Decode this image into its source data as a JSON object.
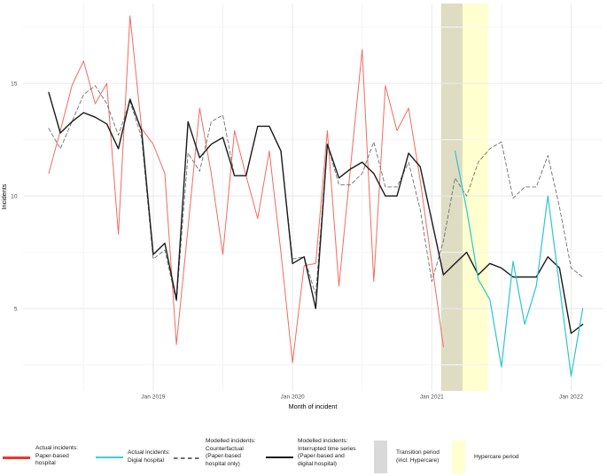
{
  "chart_data": {
    "type": "line",
    "title": "",
    "x_axis": {
      "label": "Month of incident",
      "tick_labels": [
        "Jan 2019",
        "Jan 2020",
        "Jan 2021",
        "Jan 2022"
      ],
      "tick_indices": [
        9,
        21,
        33,
        45
      ],
      "minor_tick_indices": [
        3,
        15,
        27,
        39
      ],
      "n_points": 47,
      "start_month": "Apr 2018",
      "end_month": "Feb 2022"
    },
    "y_axis": {
      "label": "Incidents",
      "tick_values": [
        5,
        10,
        15
      ],
      "minor_tick_values": [
        2.5,
        7.5,
        12.5,
        17.5
      ],
      "range": [
        1.3,
        18.6
      ]
    },
    "grid": {
      "major_color": "#e9e9e9",
      "minor_color": "#f4f4f4",
      "grid_on": true
    },
    "bands": [
      {
        "name": "Transition period (incl. Hypercare)",
        "color": "#deddc4",
        "from_index": 33.8,
        "to_index": 35.65
      },
      {
        "name": "Hypercare period",
        "color": "#ffffd0",
        "from_index": 35.65,
        "to_index": 37.86
      }
    ],
    "series": [
      {
        "name": "Actual incidents: Paper-based hospital",
        "color": "#f26b60",
        "style": "solid",
        "width": 1.0,
        "start_index": 0,
        "first_month": "Apr 2018",
        "values": [
          11.0,
          12.9,
          14.9,
          16.0,
          14.1,
          15.0,
          8.3,
          18.0,
          13.0,
          12.3,
          11.0,
          3.4,
          8.6,
          13.9,
          11.0,
          7.4,
          12.9,
          10.9,
          9.0,
          12.0,
          7.5,
          2.6,
          6.9,
          7.0,
          12.9,
          6.0,
          11.3,
          16.5,
          6.2,
          14.9,
          12.9,
          13.9,
          10.7,
          7.0,
          3.3
        ]
      },
      {
        "name": "Modelled incidents: Counterfactual (Paper-based hospital only)",
        "color": "#6f6f6f",
        "style": "dashed",
        "width": 0.9,
        "start_index": 0,
        "first_month": "Apr 2018",
        "values": [
          13.0,
          12.1,
          13.3,
          14.5,
          14.9,
          14.1,
          12.7,
          14.2,
          12.6,
          7.2,
          7.6,
          5.3,
          11.9,
          11.1,
          13.3,
          13.6,
          10.9,
          10.9,
          13.1,
          13.1,
          12.0,
          7.2,
          7.3,
          5.6,
          12.3,
          10.5,
          10.5,
          11.0,
          12.4,
          10.4,
          10.4,
          11.5,
          9.4,
          6.2,
          8.0,
          10.8,
          10.0,
          11.5,
          12.1,
          12.4,
          9.9,
          10.4,
          10.4,
          11.8,
          9.5,
          6.8,
          6.4
        ]
      },
      {
        "name": "Modelled incidents: Interrupted time series (Paper-based and digital hospital)",
        "color": "#1a1a1a",
        "style": "solid",
        "width": 1.4,
        "start_index": 0,
        "first_month": "Apr 2018",
        "values": [
          14.6,
          12.8,
          13.3,
          13.7,
          13.5,
          13.2,
          12.1,
          14.3,
          12.9,
          7.4,
          7.9,
          5.4,
          13.3,
          11.7,
          12.3,
          12.6,
          10.9,
          10.9,
          13.1,
          13.1,
          12.0,
          7.0,
          7.3,
          5.0,
          12.3,
          10.8,
          11.2,
          11.5,
          11.0,
          10.0,
          10.0,
          11.9,
          11.3,
          8.9,
          6.5,
          7.0,
          7.5,
          6.5,
          7.0,
          6.8,
          6.4,
          6.4,
          6.4,
          7.3,
          6.8,
          3.9,
          4.3
        ]
      },
      {
        "name": "Actual incidents: Digial hospital",
        "color": "#2cc5cd",
        "style": "solid",
        "width": 1.2,
        "start_index": 35,
        "first_month": "Mar 2021",
        "values": [
          12.0,
          9.4,
          6.3,
          5.4,
          2.4,
          7.1,
          4.3,
          6.0,
          10.0,
          6.0,
          2.0,
          5.0
        ]
      }
    ]
  },
  "legend": {
    "items": [
      {
        "label": "Actual incidents:\nPaper-based\nhospital",
        "swatch": "line",
        "color": "#e73a2e"
      },
      {
        "label": "Actual incidents:\nDigial hospital",
        "swatch": "line",
        "color": "#3ecfd5"
      },
      {
        "label": "Modelled incidents:\nCounterfactual\n(Paper-based\nhospital only)",
        "swatch": "dashed-line",
        "color": "#6f6f6f"
      },
      {
        "label": "Modelled incidents:\nInterrupted time series\n(Paper-based and\ndigital hospital)",
        "swatch": "line",
        "color": "#1a1a1a"
      },
      {
        "label": "Transition period\n(incl. Hypercare)",
        "swatch": "rect",
        "color": "#d9d9d9"
      },
      {
        "label": "Hypercare period",
        "swatch": "rect",
        "color": "#ffffd0"
      }
    ]
  }
}
